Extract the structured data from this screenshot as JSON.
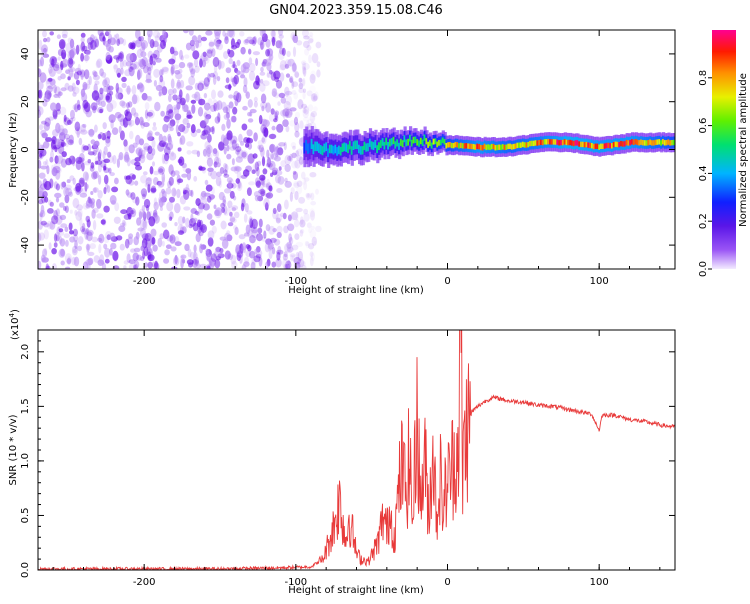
{
  "title": "GN04.2023.359.15.08.C46",
  "colors": {
    "spectrogram_noise": "#7a22f0",
    "snr_line": "#e83a3a",
    "colorbar_stops": [
      "#f0e6ff",
      "#7b2cf0",
      "#1b1bff",
      "#00c8ff",
      "#00e060",
      "#aaf000",
      "#ffe000",
      "#ff8000",
      "#ff0000",
      "#ff0080"
    ]
  },
  "chart_data": [
    {
      "type": "heatmap",
      "name": "spectrogram",
      "xlabel": "Height of straight line (km)",
      "ylabel": "Frequency (Hz)",
      "xlim": [
        -270,
        150
      ],
      "ylim": [
        -50,
        50
      ],
      "xticks": [
        -200,
        -100,
        0,
        100
      ],
      "yticks": [
        40,
        20,
        0,
        -20,
        -40
      ],
      "xticklabels": [
        "-200",
        "-100",
        "0",
        "100"
      ],
      "yticklabels": [
        "40",
        "20",
        "0",
        "-20",
        "-40"
      ],
      "noise_region_x": [
        -270,
        -95
      ],
      "signal_band": [
        {
          "x": -95,
          "freq": 2,
          "halfwidth": 5,
          "amp": 0.35
        },
        {
          "x": -80,
          "freq": 0,
          "halfwidth": 4,
          "amp": 0.45
        },
        {
          "x": -60,
          "freq": 1,
          "halfwidth": 4,
          "amp": 0.45
        },
        {
          "x": -40,
          "freq": 2,
          "halfwidth": 3.5,
          "amp": 0.5
        },
        {
          "x": -20,
          "freq": 4,
          "halfwidth": 3,
          "amp": 0.55
        },
        {
          "x": 0,
          "freq": 2,
          "halfwidth": 2.5,
          "amp": 0.7
        },
        {
          "x": 20,
          "freq": 1,
          "halfwidth": 2.5,
          "amp": 0.85
        },
        {
          "x": 40,
          "freq": 1,
          "halfwidth": 2.5,
          "amp": 0.75
        },
        {
          "x": 60,
          "freq": 3,
          "halfwidth": 2.5,
          "amp": 0.8
        },
        {
          "x": 80,
          "freq": 3,
          "halfwidth": 2.5,
          "amp": 0.9
        },
        {
          "x": 100,
          "freq": 1,
          "halfwidth": 2.5,
          "amp": 0.85
        },
        {
          "x": 120,
          "freq": 3,
          "halfwidth": 2.5,
          "amp": 0.85
        },
        {
          "x": 150,
          "freq": 3,
          "halfwidth": 2.5,
          "amp": 0.7
        }
      ],
      "colorbar": {
        "label": "Normalized spectral amplitude",
        "range": [
          0,
          1
        ],
        "ticks": [
          0.0,
          0.2,
          0.4,
          0.6,
          0.8
        ],
        "ticklabels": [
          "0.0",
          "0.2",
          "0.4",
          "0.6",
          "0.8"
        ]
      }
    },
    {
      "type": "line",
      "name": "snr",
      "xlabel": "Height of straight line (km)",
      "ylabel": "SNR (10 * v/v)",
      "scale_label": "(x10",
      "scale_exponent": "4",
      "scale_suffix": ")",
      "xlim": [
        -270,
        150
      ],
      "ylim": [
        0,
        2.2
      ],
      "xticks": [
        -200,
        -100,
        0,
        100
      ],
      "yticks": [
        0.0,
        0.5,
        1.0,
        1.5,
        2.0
      ],
      "xticklabels": [
        "-200",
        "-100",
        "0",
        "100"
      ],
      "yticklabels": [
        "0.0",
        "0.5",
        "1.0",
        "1.5",
        "2.0"
      ],
      "series": [
        {
          "x": [
            -270,
            -200,
            -150,
            -110,
            -90,
            -82,
            -75,
            -71,
            -69,
            -67,
            -65,
            -62,
            -60,
            -57,
            -52,
            -46,
            -42,
            -40,
            -38,
            -35,
            -32,
            -30,
            -27,
            -25,
            -23,
            -20,
            -18,
            -15,
            -12,
            -10,
            -7,
            -5,
            -3,
            -1,
            1,
            3,
            5,
            7,
            8,
            9,
            10,
            11,
            13,
            16,
            20,
            25,
            30,
            35,
            40,
            50,
            60,
            70,
            80,
            95,
            100,
            102,
            110,
            120,
            130,
            140,
            150
          ],
          "y": [
            0.01,
            0.01,
            0.01,
            0.02,
            0.03,
            0.1,
            0.4,
            0.65,
            0.45,
            0.25,
            0.5,
            0.3,
            0.15,
            0.1,
            0.08,
            0.25,
            0.5,
            0.35,
            0.55,
            0.3,
            0.75,
            0.95,
            0.7,
            1.1,
            0.4,
            1.55,
            0.6,
            1.0,
            0.5,
            1.2,
            0.45,
            0.9,
            0.55,
            0.75,
            0.85,
            0.95,
            1.05,
            1.1,
            1.8,
            2.2,
            0.8,
            1.2,
            1.3,
            1.45,
            1.5,
            1.55,
            1.58,
            1.57,
            1.55,
            1.54,
            1.51,
            1.5,
            1.47,
            1.43,
            1.28,
            1.42,
            1.42,
            1.38,
            1.36,
            1.33,
            1.31
          ]
        }
      ]
    }
  ]
}
